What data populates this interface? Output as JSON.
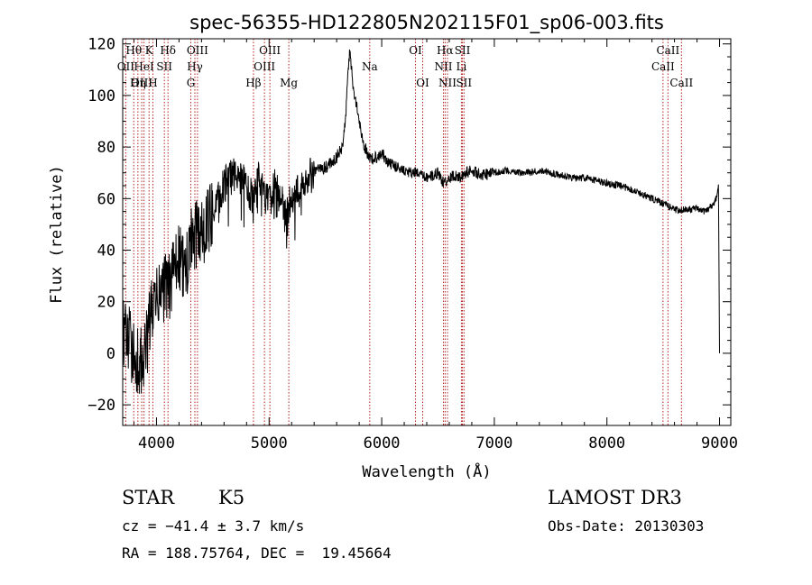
{
  "chart_data": {
    "type": "line",
    "title": "spec-56355-HD122805N202115F01_sp06-003.fits",
    "xlabel": "Wavelength (Å)",
    "ylabel": "Flux (relative)",
    "xlim": [
      3700,
      9100
    ],
    "ylim": [
      -28,
      122
    ],
    "xticks": [
      4000,
      5000,
      6000,
      7000,
      8000,
      9000
    ],
    "yticks": [
      -20,
      0,
      20,
      40,
      60,
      80,
      100,
      120
    ],
    "x_minor_step": 200,
    "y_minor_step": 5,
    "line_color": "#000000",
    "marker_color": "#b22222",
    "series": [
      {
        "name": "flux",
        "x": [
          3700,
          3750,
          3800,
          3850,
          3900,
          3950,
          4000,
          4050,
          4100,
          4150,
          4200,
          4250,
          4300,
          4350,
          4400,
          4450,
          4500,
          4550,
          4600,
          4650,
          4700,
          4750,
          4800,
          4850,
          4900,
          4950,
          5000,
          5050,
          5100,
          5150,
          5200,
          5250,
          5300,
          5350,
          5400,
          5450,
          5500,
          5550,
          5600,
          5650,
          5680,
          5700,
          5720,
          5740,
          5760,
          5780,
          5800,
          5820,
          5850,
          5880,
          5900,
          5920,
          5950,
          6000,
          6050,
          6100,
          6150,
          6200,
          6250,
          6300,
          6350,
          6400,
          6450,
          6500,
          6550,
          6600,
          6650,
          6700,
          6750,
          6800,
          6900,
          7000,
          7100,
          7200,
          7300,
          7400,
          7500,
          7600,
          7700,
          7800,
          7900,
          8000,
          8100,
          8200,
          8300,
          8400,
          8500,
          8550,
          8600,
          8650,
          8700,
          8750,
          8800,
          8850,
          8900,
          8950,
          8970,
          8990,
          9000
        ],
        "y": [
          10,
          5,
          0,
          -5,
          0,
          15,
          20,
          25,
          25,
          30,
          38,
          30,
          42,
          45,
          48,
          50,
          55,
          60,
          65,
          68,
          70,
          68,
          65,
          60,
          68,
          65,
          58,
          65,
          60,
          55,
          60,
          62,
          65,
          68,
          70,
          72,
          72,
          74,
          76,
          80,
          90,
          110,
          118,
          105,
          100,
          95,
          90,
          85,
          80,
          77,
          76,
          75,
          76,
          78,
          74,
          73,
          72,
          71,
          70,
          70,
          69,
          68,
          69,
          70,
          66,
          68,
          69,
          68,
          70,
          71,
          69,
          70,
          71,
          70,
          70,
          71,
          70,
          69,
          68,
          68,
          67,
          66,
          65,
          64,
          62,
          60,
          58,
          57,
          56,
          55,
          56,
          56,
          56,
          55,
          56,
          58,
          60,
          65,
          0
        ]
      }
    ],
    "lines": [
      {
        "label": "Hθ",
        "wavelength": 3798,
        "row": 0
      },
      {
        "label": "OII",
        "wavelength": 3727,
        "row": 1
      },
      {
        "label": "OIII",
        "wavelength": 3869,
        "row": 2
      },
      {
        "label": "K",
        "wavelength": 3934,
        "row": 0
      },
      {
        "label": "HeI",
        "wavelength": 3889,
        "row": 1
      },
      {
        "label": "Hη",
        "wavelength": 3835,
        "row": 2
      },
      {
        "label": "H",
        "wavelength": 3968,
        "row": 2
      },
      {
        "label": "SII",
        "wavelength": 4070,
        "row": 1
      },
      {
        "label": "Hδ",
        "wavelength": 4102,
        "row": 0
      },
      {
        "label": "OIII",
        "wavelength": 4364,
        "row": 0
      },
      {
        "label": "Hγ",
        "wavelength": 4341,
        "row": 1
      },
      {
        "label": "G",
        "wavelength": 4305,
        "row": 2
      },
      {
        "label": "Hβ",
        "wavelength": 4861,
        "row": 2
      },
      {
        "label": "OIII",
        "wavelength": 5007,
        "row": 0
      },
      {
        "label": "OIII",
        "wavelength": 4959,
        "row": 1
      },
      {
        "label": "Mg",
        "wavelength": 5175,
        "row": 2
      },
      {
        "label": "Na",
        "wavelength": 5894,
        "row": 1
      },
      {
        "label": "OI",
        "wavelength": 6300,
        "row": 0
      },
      {
        "label": "OI",
        "wavelength": 6364,
        "row": 2
      },
      {
        "label": "Hα",
        "wavelength": 6563,
        "row": 0
      },
      {
        "label": "NII",
        "wavelength": 6548,
        "row": 1
      },
      {
        "label": "NII",
        "wavelength": 6584,
        "row": 2
      },
      {
        "label": "SII",
        "wavelength": 6717,
        "row": 0
      },
      {
        "label": "Li",
        "wavelength": 6708,
        "row": 1
      },
      {
        "label": "SII",
        "wavelength": 6731,
        "row": 2
      },
      {
        "label": "CaII",
        "wavelength": 8542,
        "row": 0
      },
      {
        "label": "CaII",
        "wavelength": 8498,
        "row": 1
      },
      {
        "label": "CaII",
        "wavelength": 8662,
        "row": 2
      }
    ]
  },
  "footer": {
    "object_class": "STAR",
    "subclass": "K5",
    "survey": "LAMOST DR3",
    "cz": "cz = −41.4 ± 3.7 km/s",
    "obs_date": "Obs-Date: 20130303",
    "coords": "RA = 188.75764, DEC =  19.45664"
  }
}
